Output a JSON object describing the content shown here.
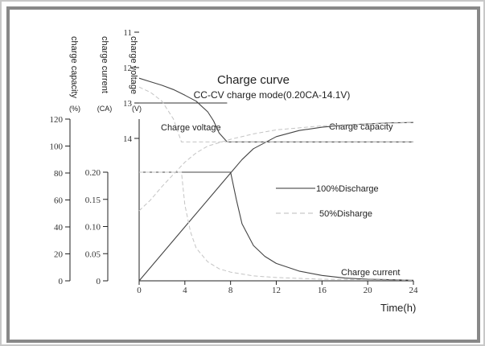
{
  "chart_data": {
    "type": "line",
    "title": "Charge curve",
    "subtitle": "CC-CV charge mode(0.20CA-14.1V)",
    "xlabel": "Time(h)",
    "x_ticks": [
      "0",
      "4",
      "8",
      "12",
      "16",
      "20",
      "24"
    ],
    "xlim": [
      0,
      24
    ],
    "axes": {
      "capacity": {
        "label": "charge capacity",
        "unit": "(%)",
        "ticks": [
          "0",
          "20",
          "40",
          "60",
          "80",
          "100",
          "120"
        ],
        "range": [
          0,
          120
        ]
      },
      "current": {
        "label": "charge current",
        "unit": "(CA)",
        "ticks": [
          "0",
          "0.05",
          "0.10",
          "0.15",
          "0.20"
        ],
        "range": [
          0,
          0.25
        ]
      },
      "voltage": {
        "label": "charge voltage",
        "unit": "(V)",
        "ticks": [
          "11",
          "12",
          "13",
          "14"
        ],
        "range": [
          10,
          14.5
        ]
      }
    },
    "curve_labels": {
      "voltage": "Charge voltage",
      "capacity": "Charge capacity",
      "current": "Charge current"
    },
    "legend": [
      {
        "name": "100%Discharge",
        "style": "solid"
      },
      {
        "name": "50%Disharge",
        "style": "dashed"
      }
    ],
    "series": [
      {
        "curve": "voltage",
        "legend": "100%Discharge",
        "axis": "voltage",
        "x": [
          0,
          1,
          2,
          3,
          4,
          5,
          6,
          6.5,
          7,
          7.7,
          24
        ],
        "y": [
          12.3,
          12.4,
          12.5,
          12.62,
          12.78,
          12.95,
          13.25,
          13.5,
          13.85,
          14.1,
          14.1
        ]
      },
      {
        "curve": "capacity",
        "legend": "100%Discharge",
        "axis": "capacity",
        "x": [
          0,
          2,
          4,
          6,
          8,
          9,
          10,
          12,
          14,
          16,
          18,
          20,
          22,
          24
        ],
        "y": [
          0,
          20,
          40,
          60,
          80,
          90,
          98,
          107,
          111.5,
          114,
          115.5,
          116.5,
          117.2,
          117.5
        ]
      },
      {
        "curve": "current",
        "legend": "100%Discharge",
        "axis": "current",
        "x": [
          0,
          8,
          8.5,
          9,
          10,
          11,
          12,
          14,
          16,
          18,
          20,
          22,
          24
        ],
        "y": [
          0.2,
          0.2,
          0.15,
          0.105,
          0.065,
          0.045,
          0.032,
          0.018,
          0.01,
          0.005,
          0.003,
          0.002,
          0.001
        ]
      },
      {
        "curve": "voltage",
        "legend": "50%Disharge",
        "axis": "voltage",
        "x": [
          0,
          1,
          2,
          3,
          3.7,
          24
        ],
        "y": [
          12.55,
          12.7,
          12.95,
          13.45,
          14.1,
          14.1
        ]
      },
      {
        "curve": "capacity",
        "legend": "50%Disharge",
        "axis": "capacity",
        "x": [
          0,
          1,
          2,
          3,
          4,
          5,
          6,
          8,
          10,
          12,
          16,
          20,
          24
        ],
        "y": [
          52,
          60,
          70,
          79,
          88,
          95,
          100,
          105,
          109,
          112,
          115,
          116.5,
          117.5
        ]
      },
      {
        "curve": "current",
        "legend": "50%Disharge",
        "axis": "current",
        "x": [
          0,
          3.7,
          4,
          4.5,
          5,
          6,
          7,
          8,
          10,
          12,
          16,
          20,
          24
        ],
        "y": [
          0.2,
          0.2,
          0.14,
          0.09,
          0.06,
          0.035,
          0.022,
          0.016,
          0.009,
          0.006,
          0.003,
          0.002,
          0.001
        ]
      }
    ],
    "grid": false,
    "legend_position": "center-right"
  }
}
